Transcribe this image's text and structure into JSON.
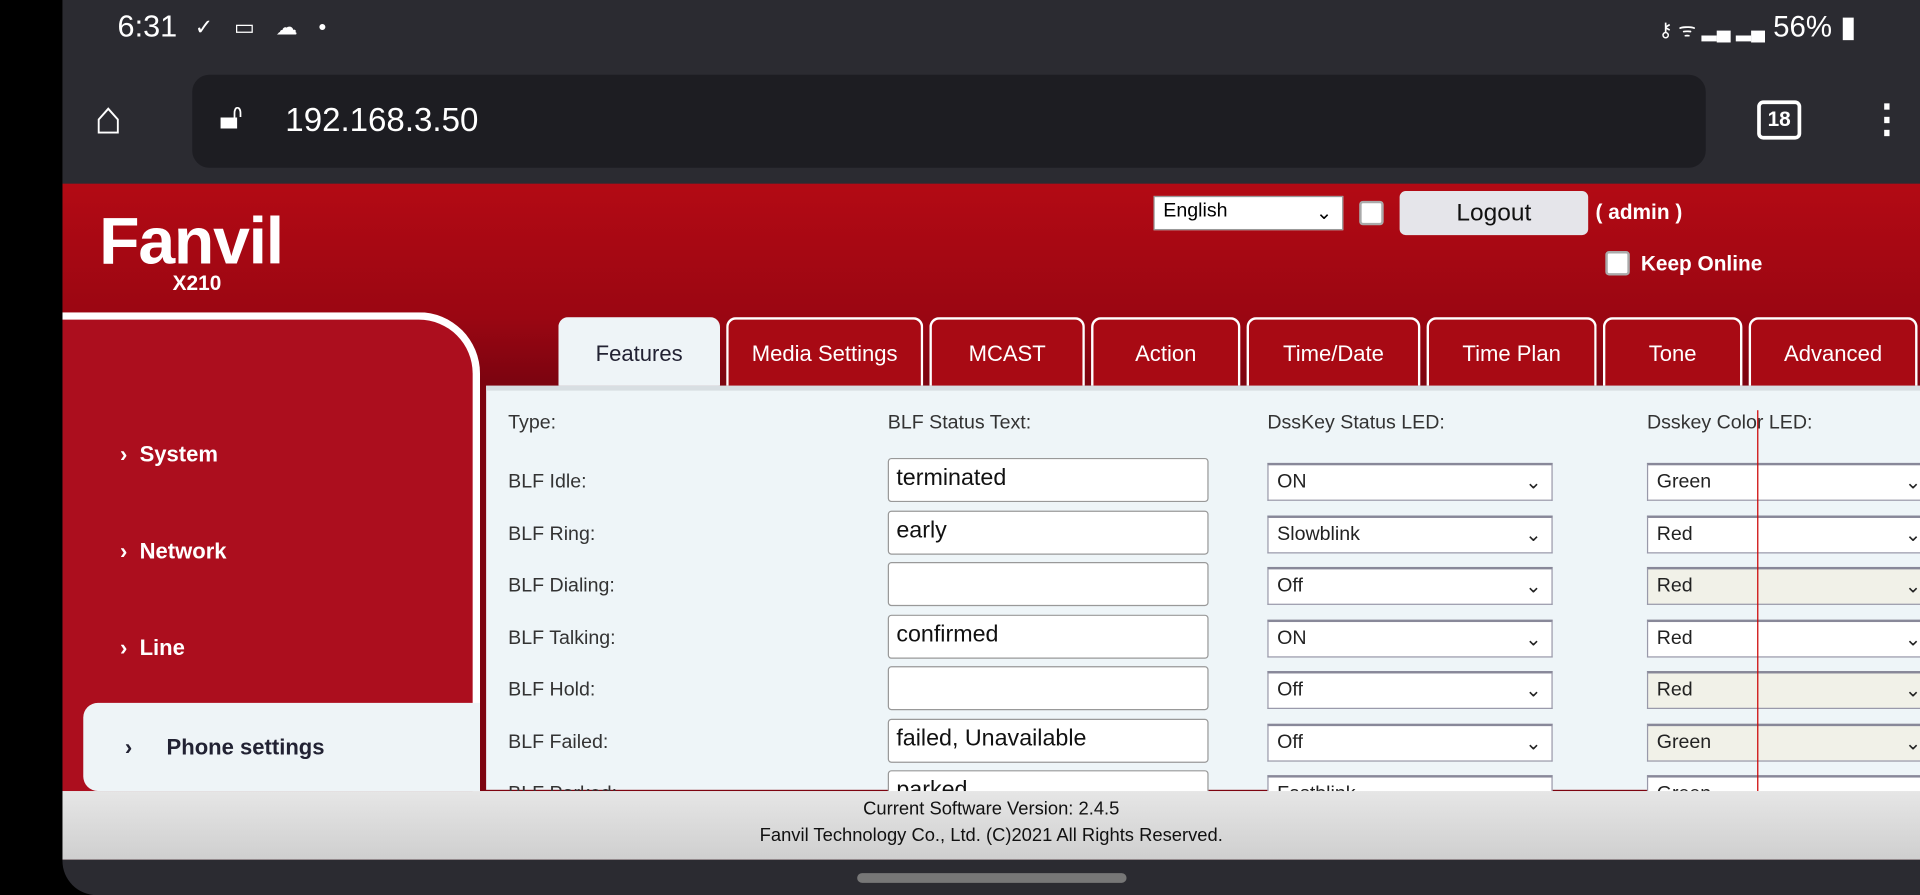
{
  "status_bar": {
    "time": "6:31",
    "left_icons": "✓ ▭ ☁ •",
    "right_icons": "⚷ ᯤ ▂▄ ▂▄",
    "battery": "56%"
  },
  "browser": {
    "url": "192.168.3.50",
    "tab_count": "18"
  },
  "header": {
    "logo": "Fanvil",
    "model": "X210",
    "language": "English",
    "logout_label": "Logout",
    "user": "( admin )",
    "keep_online": "Keep Online"
  },
  "tabs": [
    "Features",
    "Media Settings",
    "MCAST",
    "Action",
    "Time/Date",
    "Time Plan",
    "Tone",
    "Advanced"
  ],
  "sidebar": [
    "System",
    "Network",
    "Line",
    "Phone settings"
  ],
  "table": {
    "headers": [
      "Type:",
      "BLF Status Text:",
      "DssKey Status LED:",
      "Dsskey Color LED:"
    ],
    "rows": [
      {
        "type": "BLF Idle:",
        "text": "terminated",
        "status": "ON",
        "color": "Green"
      },
      {
        "type": "BLF Ring:",
        "text": "early",
        "status": "Slowblink",
        "color": "Red"
      },
      {
        "type": "BLF Dialing:",
        "text": "",
        "status": "Off",
        "color": "Red"
      },
      {
        "type": "BLF Talking:",
        "text": "confirmed",
        "status": "ON",
        "color": "Red"
      },
      {
        "type": "BLF Hold:",
        "text": "",
        "status": "Off",
        "color": "Red"
      },
      {
        "type": "BLF Failed:",
        "text": "failed, Unavailable",
        "status": "Off",
        "color": "Green"
      },
      {
        "type": "BLF Parked:",
        "text": "parked",
        "status": "Fastblink",
        "color": "Green"
      }
    ]
  },
  "footer": {
    "version": "Current Software Version: 2.4.5",
    "copyright": "Fanvil Technology Co., Ltd. (C)2021 All Rights Reserved."
  },
  "colors": {
    "brand_red": "#ac0e1e",
    "content_bg": "#eef5f8"
  }
}
